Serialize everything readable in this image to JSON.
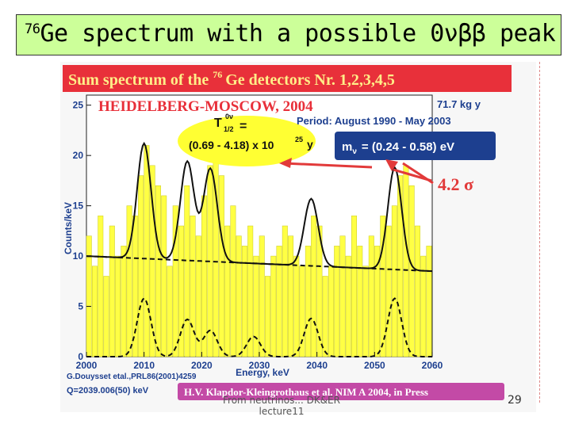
{
  "slide": {
    "title_sup": "76",
    "title_text": "Ge spectrum with a possible 0νββ peak",
    "footer_line1": "From neutrinos... DK&ER",
    "footer_line2": "lecture11",
    "page_number": "29"
  },
  "figure": {
    "banner_text": "Sum spectrum of the",
    "banner_sup": "76",
    "banner_text2": "Ge detectors Nr. 1,2,3,4,5",
    "experiment": "HEIDELBERG-MOSCOW, 2004",
    "exposure": "71.7 kg y",
    "period": "Period: August 1990 - May 2003",
    "halflife_label": "T",
    "halflife_sup": "0ν",
    "halflife_sub": "1/2",
    "halflife_eq": "=",
    "halflife_value": "(0.69 - 4.18) x 10",
    "halflife_exp": "25",
    "halflife_unit": "y",
    "mass_label": "m",
    "mass_sub": "ν",
    "mass_value": "= (0.24 - 0.58) eV",
    "sigma": "4.2 σ",
    "ref1": "G.Douysset etal.,PRL86(2001)4259",
    "ref2": "Q=2039.006(50) keV",
    "ref3": "H.V. Klapdor-Kleingrothaus et al. NIM A 2004, in Press",
    "colors": {
      "banner": "#e8303a",
      "bars": "#ffff44",
      "ellipse": "#ffff33",
      "mass_box": "#1d3f8f",
      "arrow": "#e23a3a",
      "ref3_box": "#c34aa6"
    }
  },
  "chart_data": {
    "type": "bar",
    "xlabel": "Energy, keV",
    "ylabel": "Counts/keV",
    "xlim": [
      2000,
      2060
    ],
    "ylim": [
      0,
      26
    ],
    "xticks": [
      2000,
      2010,
      2020,
      2030,
      2040,
      2050,
      2060
    ],
    "yticks": [
      0,
      5,
      10,
      15,
      20,
      25
    ],
    "bin_width": 1,
    "x": [
      2000,
      2001,
      2002,
      2003,
      2004,
      2005,
      2006,
      2007,
      2008,
      2009,
      2010,
      2011,
      2012,
      2013,
      2014,
      2015,
      2016,
      2017,
      2018,
      2019,
      2020,
      2021,
      2022,
      2023,
      2024,
      2025,
      2026,
      2027,
      2028,
      2029,
      2030,
      2031,
      2032,
      2033,
      2034,
      2035,
      2036,
      2037,
      2038,
      2039,
      2040,
      2041,
      2042,
      2043,
      2044,
      2045,
      2046,
      2047,
      2048,
      2049,
      2050,
      2051,
      2052,
      2053,
      2054,
      2055,
      2056,
      2057,
      2058,
      2059
    ],
    "values": [
      12,
      9,
      14,
      8,
      13,
      10,
      11,
      15,
      14,
      18,
      21,
      19,
      17,
      16,
      9,
      15,
      13,
      17,
      14,
      12,
      16,
      19,
      21,
      18,
      13,
      15,
      12,
      11,
      13,
      10,
      12,
      8,
      10,
      11,
      13,
      12,
      10,
      9,
      11,
      14,
      13,
      8,
      9,
      11,
      12,
      10,
      14,
      11,
      9,
      12,
      11,
      14,
      13,
      15,
      18,
      19,
      17,
      13,
      10,
      11
    ],
    "fit_curves": [
      {
        "style": "solid",
        "peaks": [
          {
            "center": 2010.0,
            "height": 21.2
          },
          {
            "center": 2017.5,
            "height": 19.4
          },
          {
            "center": 2021.5,
            "height": 18.7
          },
          {
            "center": 2039.0,
            "height": 15.7
          },
          {
            "center": 2053.5,
            "height": 18.8
          }
        ]
      },
      {
        "style": "dashed-background",
        "values_at_xlim": [
          10.0,
          8.5
        ]
      },
      {
        "style": "dashed-peaks",
        "peaks": [
          {
            "center": 2010.0,
            "height": 5.8
          },
          {
            "center": 2017.5,
            "height": 3.7
          },
          {
            "center": 2021.5,
            "height": 2.6
          },
          {
            "center": 2029.0,
            "height": 2.0
          },
          {
            "center": 2039.0,
            "height": 3.8
          },
          {
            "center": 2053.5,
            "height": 5.8
          }
        ]
      }
    ]
  }
}
